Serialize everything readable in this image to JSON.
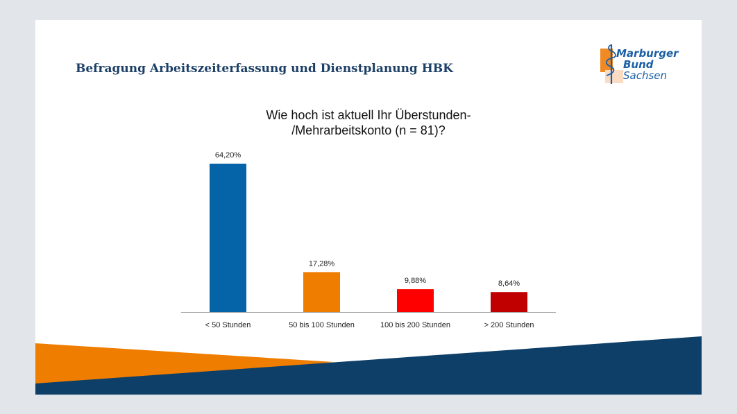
{
  "slide": {
    "title": "Befragung Arbeitszeiterfassung und Dienstplanung HBK"
  },
  "logo": {
    "line1": "Marburger",
    "line2": "Bund",
    "line3": "Sachsen",
    "icon": "aesculapius-staff-icon"
  },
  "colors": {
    "title": "#1c3f66",
    "navy": "#0e3f68",
    "orange": "#ef7d00",
    "logo_blue": "#1b5fa4",
    "logo_orange": "#f08a24"
  },
  "chart_data": {
    "type": "bar",
    "title_lines": [
      "Wie hoch ist aktuell Ihr Überstunden-",
      "/Mehrarbeitskonto (n = 81)?"
    ],
    "categories": [
      "< 50 Stunden",
      "50 bis 100 Stunden",
      "100 bis 200 Stunden",
      "> 200 Stunden"
    ],
    "values": [
      64.2,
      17.28,
      9.88,
      8.64
    ],
    "data_labels": [
      "64,20%",
      "17,28%",
      "9,88%",
      "8,64%"
    ],
    "bar_colors": [
      "#0563a8",
      "#ef7d00",
      "#fe0000",
      "#c00000"
    ],
    "ylim": [
      0,
      64.2
    ],
    "xlabel": "",
    "ylabel": "",
    "grid": false,
    "legend": "none"
  }
}
